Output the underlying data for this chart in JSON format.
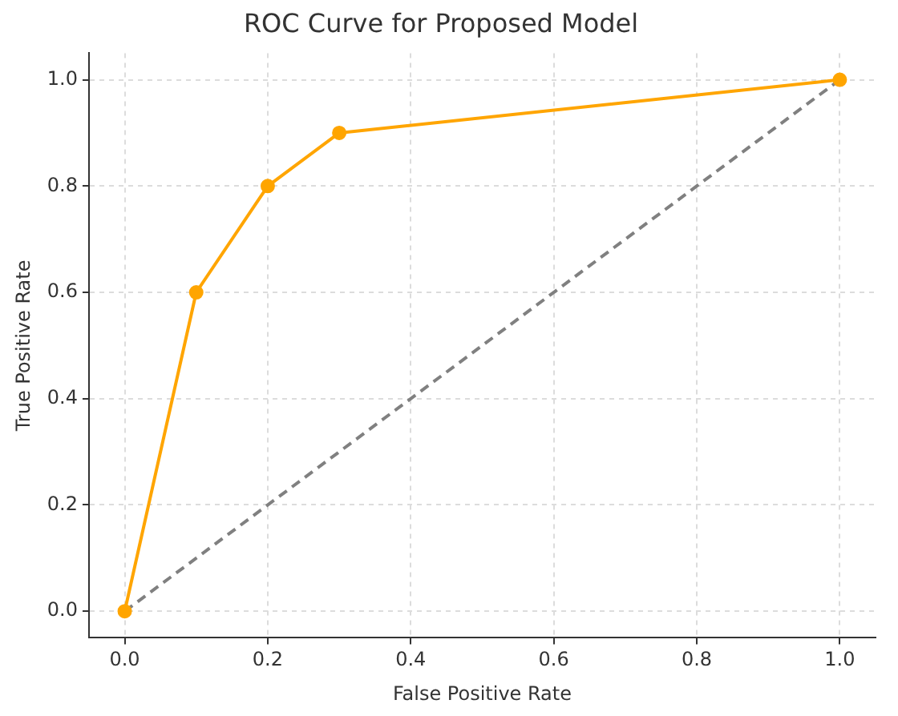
{
  "chart_data": {
    "type": "line",
    "title": "ROC Curve for Proposed Model",
    "xlabel": "False Positive Rate",
    "ylabel": "True Positive Rate",
    "series": [
      {
        "x": [
          0,
          0.1,
          0.2,
          0.3,
          1
        ],
        "values": [
          0,
          0.6,
          0.8,
          0.9,
          1
        ],
        "color": "#ffa500",
        "marker": "circle",
        "line_style": "solid"
      },
      {
        "x": [
          0,
          1
        ],
        "values": [
          0,
          1
        ],
        "color": "#808080",
        "marker": "none",
        "line_style": "dashed"
      }
    ],
    "xlim": [
      -0.05,
      1.05
    ],
    "ylim": [
      -0.05,
      1.05
    ],
    "xticks": [
      {
        "value": 0,
        "label": "0.0"
      },
      {
        "value": 0.2,
        "label": "0.2"
      },
      {
        "value": 0.4,
        "label": "0.4"
      },
      {
        "value": 0.6,
        "label": "0.6"
      },
      {
        "value": 0.8,
        "label": "0.8"
      },
      {
        "value": 1,
        "label": "1.0"
      }
    ],
    "yticks": [
      {
        "value": 0,
        "label": "0.0"
      },
      {
        "value": 0.2,
        "label": "0.2"
      },
      {
        "value": 0.4,
        "label": "0.4"
      },
      {
        "value": 0.6,
        "label": "0.6"
      },
      {
        "value": 0.8,
        "label": "0.8"
      },
      {
        "value": 1,
        "label": "1.0"
      }
    ],
    "grid": true,
    "legend": false
  }
}
